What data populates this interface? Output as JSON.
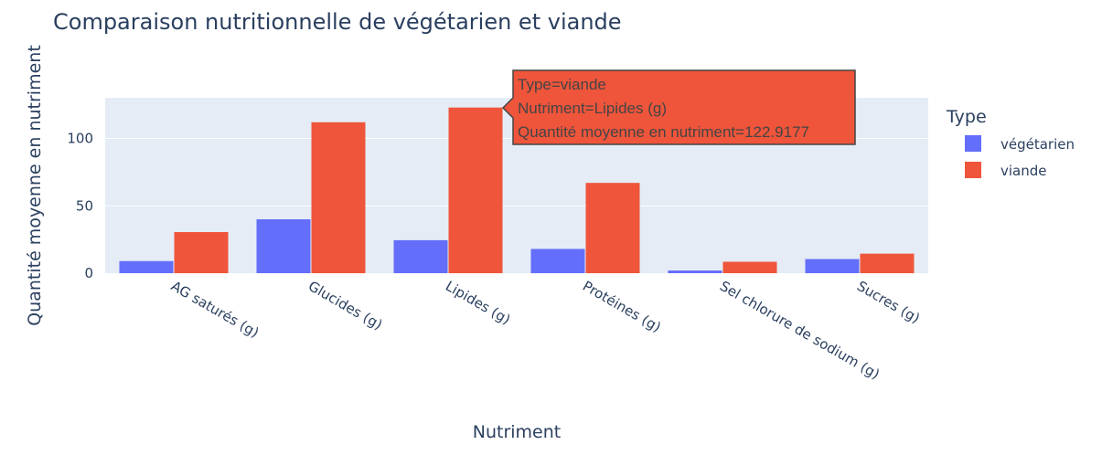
{
  "chart_data": {
    "type": "bar",
    "title": "Comparaison nutritionnelle de végétarien et viande",
    "xlabel": "Nutriment",
    "ylabel": "Quantité moyenne en nutriment",
    "categories": [
      "AG saturés (g)",
      "Glucides (g)",
      "Lipides (g)",
      "Protéines (g)",
      "Sel chlorure de sodium (g)",
      "Sucres (g)"
    ],
    "series": [
      {
        "name": "végétarien",
        "color": "#636efa",
        "values": [
          9,
          40,
          24.5,
          18,
          2,
          10.5
        ]
      },
      {
        "name": "viande",
        "color": "#ef553b",
        "values": [
          30.5,
          112,
          122.9177,
          67,
          8.5,
          14.5
        ]
      }
    ],
    "ylim": [
      0,
      130
    ],
    "yticks": [
      "0",
      "50",
      "100"
    ],
    "grid": true,
    "legend": {
      "title": "Type",
      "placement": "right"
    }
  },
  "hover": {
    "line1": "Type=viande",
    "line2": "Nutriment=Lipides (g)",
    "line3": "Quantité moyenne en nutriment=122.9177"
  }
}
